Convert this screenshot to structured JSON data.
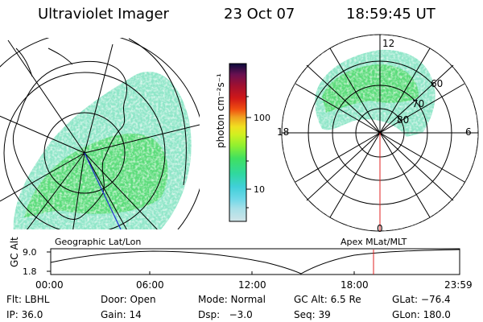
{
  "header": {
    "instrument": "Ultraviolet Imager",
    "date": "23 Oct 07",
    "time": "18:59:45 UT"
  },
  "left_panel": {
    "caption": "Geographic Lat/Lon"
  },
  "right_panel": {
    "caption": "Apex MLat/MLT",
    "mlt_labels": {
      "top": "12",
      "bottom": "0",
      "left": "18",
      "right": "6"
    },
    "lat_labels": [
      "60",
      "70",
      "80"
    ]
  },
  "colorbar": {
    "unit_label": "photon cm⁻²s⁻¹",
    "ticks": [
      "100",
      "10"
    ],
    "colors": [
      "#0a0a3c",
      "#2a0a55",
      "#6a1050",
      "#a01030",
      "#d01818",
      "#f05010",
      "#f0a020",
      "#f0e020",
      "#d0f020",
      "#90f030",
      "#40e060",
      "#30d8a0",
      "#40d0d8",
      "#70d8e8",
      "#a8e0e8",
      "#d0e4e8"
    ]
  },
  "timeline": {
    "axis_label": "GC Alt",
    "y_ticks": [
      "9.0",
      "1.8"
    ],
    "x_ticks": [
      "00:00",
      "06:00",
      "12:00",
      "18:00",
      "23:59"
    ],
    "marker_color": "#e02020"
  },
  "status": {
    "row1": [
      {
        "name": "flt",
        "text": "Flt: LBHL"
      },
      {
        "name": "door",
        "text": "Door: Open"
      },
      {
        "name": "mode",
        "text": "Mode: Normal"
      },
      {
        "name": "gcalt",
        "text": "GC Alt: 6.5 Re"
      },
      {
        "name": "glat",
        "text": "GLat: −76.4"
      }
    ],
    "row2": [
      {
        "name": "ip",
        "text": "IP: 36.0"
      },
      {
        "name": "gain",
        "text": "Gain: 14"
      },
      {
        "name": "dsp",
        "text": "Dsp:   −3.0"
      },
      {
        "name": "seq",
        "text": "Seq: 39"
      },
      {
        "name": "glon",
        "text": "GLon: 180.0"
      }
    ]
  }
}
